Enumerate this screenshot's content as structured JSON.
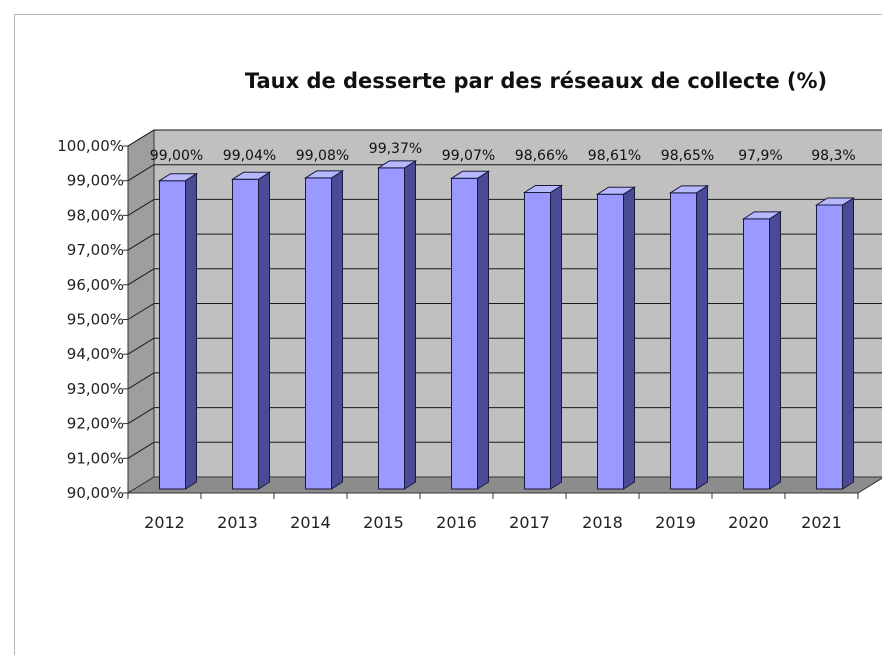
{
  "chart_data": {
    "type": "bar",
    "title": "Taux de desserte par des réseaux de collecte (%)",
    "categories": [
      "2012",
      "2013",
      "2014",
      "2015",
      "2016",
      "2017",
      "2018",
      "2019",
      "2020",
      "2021"
    ],
    "values": [
      99.0,
      99.04,
      99.08,
      99.37,
      99.07,
      98.66,
      98.61,
      98.65,
      97.9,
      98.3
    ],
    "data_labels": [
      "99,00%",
      "99,04%",
      "99,08%",
      "99,37%",
      "99,07%",
      "98,66%",
      "98,61%",
      "98,65%",
      "97,9%",
      "98,3%"
    ],
    "ylim": [
      90,
      100
    ],
    "yticks": [
      "90,00%",
      "91,00%",
      "92,00%",
      "93,00%",
      "94,00%",
      "95,00%",
      "96,00%",
      "97,00%",
      "98,00%",
      "99,00%",
      "100,00%"
    ],
    "xlabel": "",
    "ylabel": "",
    "grid": true,
    "legend": "none",
    "colors": {
      "bar_front": "#9999ff",
      "bar_side": "#4a4a96",
      "bar_top": "#b8b8ff",
      "wall": "#c0c0c0",
      "floor": "#8c8c8c"
    }
  }
}
